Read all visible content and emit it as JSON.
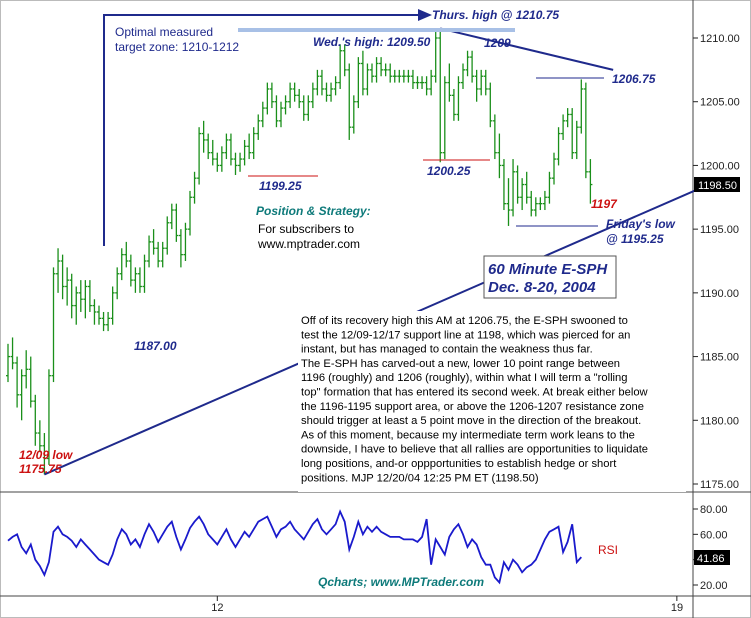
{
  "chart_data": {
    "type": "ohlc",
    "title": "60 Minute E-SPH",
    "subtitle": "Dec. 8-20, 2004",
    "colors": {
      "bars": "#1a8f1a",
      "blue": "#1f2a8c",
      "red": "#cc1111",
      "teal": "#0e7a7a",
      "axis": "#222222",
      "grid": "#e6e6e6"
    },
    "price_axis": {
      "min": 1175,
      "max": 1212.5,
      "ticks": [
        1175,
        1180,
        1185,
        1190,
        1195,
        1200,
        1205,
        1210
      ],
      "current_label": "1198.50"
    },
    "rsi_axis": {
      "min": 15,
      "max": 85,
      "ticks": [
        20,
        40,
        60,
        80
      ],
      "current_label": "41.86",
      "label": "RSI"
    },
    "x_ticks": [
      {
        "label": "12",
        "index": 46
      },
      {
        "label": "19",
        "index": 147
      }
    ],
    "bars": [
      [
        1183.5,
        1186.0,
        1183.0,
        1185.0
      ],
      [
        1185.0,
        1186.5,
        1184.0,
        1184.5
      ],
      [
        1184.5,
        1185.0,
        1181.0,
        1182.0
      ],
      [
        1182.0,
        1184.0,
        1180.0,
        1183.5
      ],
      [
        1183.5,
        1185.5,
        1182.5,
        1184.0
      ],
      [
        1184.0,
        1185.0,
        1181.0,
        1181.5
      ],
      [
        1181.5,
        1182.0,
        1178.0,
        1179.0
      ],
      [
        1179.0,
        1180.0,
        1177.5,
        1178.0
      ],
      [
        1178.0,
        1179.0,
        1175.75,
        1177.0
      ],
      [
        1177.0,
        1184.0,
        1176.5,
        1183.5
      ],
      [
        1183.5,
        1192.0,
        1183.0,
        1191.5
      ],
      [
        1191.5,
        1193.5,
        1190.0,
        1192.5
      ],
      [
        1192.5,
        1193.0,
        1189.5,
        1190.5
      ],
      [
        1190.5,
        1192.0,
        1189.0,
        1191.0
      ],
      [
        1191.0,
        1191.5,
        1188.0,
        1189.0
      ],
      [
        1189.0,
        1190.5,
        1187.5,
        1190.0
      ],
      [
        1190.0,
        1191.0,
        1188.5,
        1189.5
      ],
      [
        1189.5,
        1191.0,
        1188.0,
        1190.5
      ],
      [
        1190.5,
        1191.0,
        1188.5,
        1189.0
      ],
      [
        1189.0,
        1189.5,
        1187.5,
        1188.5
      ],
      [
        1188.5,
        1189.0,
        1187.5,
        1188.0
      ],
      [
        1188.0,
        1188.5,
        1187.0,
        1187.5
      ],
      [
        1187.5,
        1188.5,
        1187.0,
        1188.0
      ],
      [
        1188.0,
        1190.5,
        1187.5,
        1190.0
      ],
      [
        1190.0,
        1192.0,
        1189.5,
        1191.5
      ],
      [
        1191.5,
        1193.5,
        1191.0,
        1193.0
      ],
      [
        1193.0,
        1194.0,
        1192.0,
        1192.5
      ],
      [
        1192.5,
        1193.0,
        1190.5,
        1191.0
      ],
      [
        1191.0,
        1192.0,
        1190.0,
        1191.5
      ],
      [
        1191.5,
        1192.0,
        1190.0,
        1190.5
      ],
      [
        1190.5,
        1193.0,
        1190.0,
        1192.5
      ],
      [
        1192.5,
        1194.5,
        1192.0,
        1194.0
      ],
      [
        1194.0,
        1195.0,
        1193.0,
        1193.5
      ],
      [
        1193.5,
        1194.0,
        1192.0,
        1192.5
      ],
      [
        1192.5,
        1194.0,
        1192.0,
        1193.5
      ],
      [
        1193.5,
        1196.0,
        1193.0,
        1195.5
      ],
      [
        1195.5,
        1197.0,
        1195.0,
        1196.5
      ],
      [
        1196.5,
        1197.0,
        1194.0,
        1194.5
      ],
      [
        1194.5,
        1195.0,
        1192.0,
        1193.0
      ],
      [
        1193.0,
        1195.5,
        1192.5,
        1195.0
      ],
      [
        1195.0,
        1198.0,
        1194.5,
        1197.5
      ],
      [
        1197.5,
        1199.5,
        1197.0,
        1199.0
      ],
      [
        1199.0,
        1203.0,
        1198.5,
        1202.5
      ],
      [
        1202.5,
        1203.5,
        1201.0,
        1202.0
      ],
      [
        1202.0,
        1202.5,
        1200.5,
        1201.0
      ],
      [
        1201.0,
        1202.0,
        1200.0,
        1200.5
      ],
      [
        1200.5,
        1201.0,
        1199.5,
        1200.0
      ],
      [
        1200.0,
        1201.5,
        1199.5,
        1201.0
      ],
      [
        1201.0,
        1202.5,
        1200.5,
        1202.0
      ],
      [
        1202.0,
        1202.5,
        1200.0,
        1200.5
      ],
      [
        1200.5,
        1201.0,
        1199.25,
        1200.0
      ],
      [
        1200.0,
        1201.0,
        1199.5,
        1200.5
      ],
      [
        1200.5,
        1202.0,
        1200.0,
        1201.5
      ],
      [
        1201.5,
        1202.5,
        1200.5,
        1201.0
      ],
      [
        1201.0,
        1203.0,
        1200.5,
        1202.5
      ],
      [
        1202.5,
        1204.0,
        1202.0,
        1203.5
      ],
      [
        1203.5,
        1205.0,
        1203.0,
        1204.5
      ],
      [
        1204.5,
        1206.5,
        1204.0,
        1206.0
      ],
      [
        1206.0,
        1206.5,
        1204.5,
        1205.0
      ],
      [
        1205.0,
        1205.5,
        1203.0,
        1203.5
      ],
      [
        1203.5,
        1205.0,
        1203.0,
        1204.5
      ],
      [
        1204.5,
        1205.5,
        1204.0,
        1205.0
      ],
      [
        1205.0,
        1206.5,
        1204.5,
        1206.0
      ],
      [
        1206.0,
        1206.5,
        1205.0,
        1205.5
      ],
      [
        1205.5,
        1206.0,
        1204.5,
        1205.0
      ],
      [
        1205.0,
        1205.5,
        1203.5,
        1204.0
      ],
      [
        1204.0,
        1205.5,
        1203.5,
        1205.0
      ],
      [
        1205.0,
        1206.5,
        1204.5,
        1206.0
      ],
      [
        1206.0,
        1207.5,
        1205.5,
        1207.0
      ],
      [
        1207.0,
        1207.5,
        1205.5,
        1206.0
      ],
      [
        1206.0,
        1206.5,
        1205.0,
        1205.5
      ],
      [
        1205.5,
        1206.5,
        1205.0,
        1206.0
      ],
      [
        1206.0,
        1207.0,
        1205.5,
        1206.5
      ],
      [
        1206.5,
        1209.5,
        1206.0,
        1209.0
      ],
      [
        1209.0,
        1209.5,
        1207.0,
        1207.5
      ],
      [
        1207.5,
        1208.0,
        1202.0,
        1203.0
      ],
      [
        1203.0,
        1205.5,
        1202.5,
        1205.0
      ],
      [
        1205.0,
        1208.5,
        1204.5,
        1208.0
      ],
      [
        1208.0,
        1209.0,
        1205.5,
        1206.0
      ],
      [
        1206.0,
        1208.0,
        1205.5,
        1207.5
      ],
      [
        1207.5,
        1208.0,
        1206.5,
        1207.0
      ],
      [
        1207.0,
        1208.5,
        1206.5,
        1208.0
      ],
      [
        1208.0,
        1208.5,
        1207.0,
        1207.5
      ],
      [
        1207.5,
        1208.0,
        1207.0,
        1207.5
      ],
      [
        1207.5,
        1208.0,
        1206.5,
        1207.0
      ],
      [
        1207.0,
        1207.5,
        1206.5,
        1207.0
      ],
      [
        1207.0,
        1207.5,
        1206.5,
        1207.0
      ],
      [
        1207.0,
        1207.5,
        1206.5,
        1207.0
      ],
      [
        1207.0,
        1207.5,
        1206.5,
        1207.0
      ],
      [
        1207.0,
        1207.5,
        1206.0,
        1206.5
      ],
      [
        1206.5,
        1207.0,
        1206.0,
        1206.5
      ],
      [
        1206.5,
        1207.0,
        1206.0,
        1206.5
      ],
      [
        1206.5,
        1207.0,
        1205.5,
        1206.0
      ],
      [
        1206.0,
        1207.5,
        1205.5,
        1207.0
      ],
      [
        1207.0,
        1210.75,
        1206.5,
        1210.0
      ],
      [
        1210.0,
        1210.5,
        1200.25,
        1201.0
      ],
      [
        1201.0,
        1207.0,
        1200.5,
        1206.5
      ],
      [
        1206.5,
        1208.0,
        1205.0,
        1205.5
      ],
      [
        1205.5,
        1206.0,
        1203.5,
        1204.0
      ],
      [
        1204.0,
        1207.0,
        1203.5,
        1206.5
      ],
      [
        1206.5,
        1208.0,
        1206.0,
        1207.5
      ],
      [
        1207.5,
        1209.0,
        1207.0,
        1208.5
      ],
      [
        1208.5,
        1209.0,
        1206.5,
        1207.0
      ],
      [
        1207.0,
        1207.5,
        1205.0,
        1206.0
      ],
      [
        1206.0,
        1207.5,
        1205.5,
        1207.0
      ],
      [
        1207.0,
        1207.5,
        1205.5,
        1206.0
      ],
      [
        1206.0,
        1206.5,
        1203.0,
        1203.5
      ],
      [
        1203.5,
        1204.0,
        1200.5,
        1201.0
      ],
      [
        1201.0,
        1202.5,
        1199.0,
        1200.0
      ],
      [
        1200.0,
        1200.5,
        1196.5,
        1197.0
      ],
      [
        1197.0,
        1199.0,
        1195.25,
        1196.5
      ],
      [
        1196.5,
        1200.5,
        1196.0,
        1199.5
      ],
      [
        1199.5,
        1200.0,
        1197.0,
        1197.5
      ],
      [
        1197.5,
        1199.0,
        1196.5,
        1198.5
      ],
      [
        1198.5,
        1199.5,
        1197.0,
        1197.5
      ],
      [
        1197.5,
        1198.0,
        1196.0,
        1196.5
      ],
      [
        1196.5,
        1197.5,
        1196.0,
        1197.0
      ],
      [
        1197.0,
        1197.5,
        1196.5,
        1197.0
      ],
      [
        1197.0,
        1198.0,
        1196.5,
        1197.5
      ],
      [
        1197.5,
        1199.5,
        1197.0,
        1199.0
      ],
      [
        1199.0,
        1201.0,
        1198.5,
        1200.5
      ],
      [
        1200.5,
        1203.0,
        1200.0,
        1202.5
      ],
      [
        1202.5,
        1204.0,
        1202.0,
        1203.5
      ],
      [
        1203.5,
        1204.5,
        1203.0,
        1204.0
      ],
      [
        1204.0,
        1204.5,
        1200.5,
        1201.0
      ],
      [
        1201.0,
        1203.5,
        1200.5,
        1203.0
      ],
      [
        1203.0,
        1206.75,
        1202.5,
        1206.0
      ],
      [
        1206.0,
        1206.5,
        1199.0,
        1199.5
      ],
      [
        1199.5,
        1200.5,
        1197.0,
        1198.5
      ]
    ],
    "rsi": [
      55,
      58,
      60,
      50,
      45,
      52,
      40,
      35,
      28,
      38,
      62,
      66,
      60,
      58,
      55,
      50,
      56,
      52,
      48,
      44,
      40,
      38,
      36,
      44,
      56,
      64,
      60,
      52,
      56,
      50,
      60,
      68,
      62,
      54,
      60,
      66,
      70,
      58,
      48,
      56,
      65,
      70,
      74,
      68,
      60,
      56,
      52,
      58,
      64,
      56,
      50,
      56,
      62,
      58,
      64,
      70,
      72,
      74,
      66,
      58,
      64,
      66,
      70,
      64,
      60,
      56,
      62,
      68,
      72,
      64,
      60,
      64,
      68,
      78,
      70,
      48,
      58,
      70,
      60,
      66,
      62,
      66,
      62,
      60,
      58,
      58,
      58,
      56,
      56,
      56,
      54,
      58,
      72,
      36,
      56,
      50,
      44,
      58,
      64,
      68,
      60,
      50,
      56,
      52,
      42,
      36,
      36,
      26,
      22,
      38,
      32,
      40,
      36,
      30,
      34,
      36,
      40,
      48,
      56,
      62,
      64,
      66,
      46,
      54,
      68,
      38,
      42
    ],
    "trendlines": [
      {
        "from": [
          8,
          1175.75
        ],
        "to": [
          154,
          1198.5
        ]
      },
      {
        "from": [
          95,
          1210.75
        ],
        "to": [
          133,
          1207.5
        ]
      }
    ],
    "annotations": {
      "top_arrow": "Thurs. high @ 1210.75",
      "zone_l1": "Optimal measured",
      "zone_l2": "target zone: 1210-1212",
      "wed_high": "Wed.'s high: 1209.50",
      "h1209": "1209",
      "h120675": "1206.75",
      "l119925": "1199.25",
      "l120025": "1200.25",
      "l1197": "1197",
      "fri_l1": "Friday's low",
      "fri_l2": "@ 1195.25",
      "l1187": "1187.00",
      "low_l1": "12/09 low",
      "low_l2": "1175.75",
      "box_l1": "60 Minute E-SPH",
      "box_l2": "Dec. 8-20, 2004",
      "pos_title": "Position & Strategy:",
      "pos_l1": "For subscribers to",
      "pos_l2": "www.mptrader.com",
      "commentary": [
        "Off of its recovery high this AM at 1206.75, the E-SPH swooned to",
        "test the 12/09-12/17 support line at 1198, which was pierced for an",
        "instant, but has managed to contain the weakness thus far.",
        "The E-SPH has carved-out a new, lower 10 point range between",
        "1196 (roughly) and 1206 (roughly), within what I will term a \"rolling",
        "top\" formation that has entered its second week. At break either below",
        "the 1196-1195 support area, or above the 1206-1207 resistance zone",
        "should trigger at least a 5 point move in the direction of the breakout.",
        "As of this moment, because my intermediate term work leans to the",
        "downside, I have to believe that all rallies are opportunities to liquidate",
        "long positions, and-or oppportunities to establish hedge or short",
        "positions. MJP 12/20/04  12:25 PM  ET (1198.50)"
      ],
      "credit": "Qcharts; www.MPTrader.com"
    }
  }
}
